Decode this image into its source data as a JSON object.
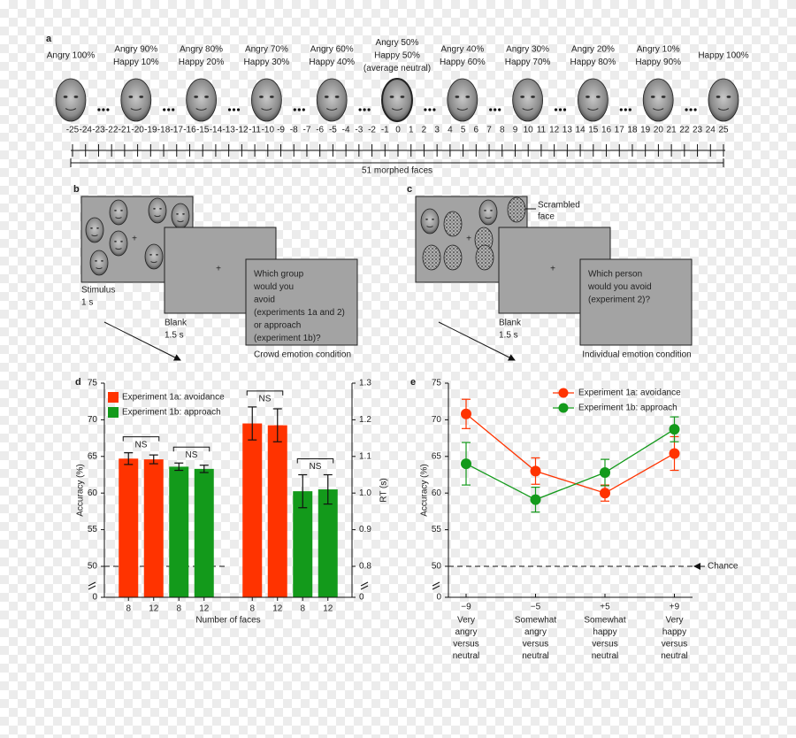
{
  "panel_a": {
    "label": "a",
    "face_labels": [
      [
        "Angry 100%"
      ],
      [
        "Angry 90%",
        "Happy 10%"
      ],
      [
        "Angry 80%",
        "Happy 20%"
      ],
      [
        "Angry 70%",
        "Happy 30%"
      ],
      [
        "Angry 60%",
        "Happy 40%"
      ],
      [
        "Angry 50%",
        "Happy 50%",
        "(average neutral)"
      ],
      [
        "Angry 40%",
        "Happy 60%"
      ],
      [
        "Angry 30%",
        "Happy 70%"
      ],
      [
        "Angry 20%",
        "Happy 80%"
      ],
      [
        "Angry 10%",
        "Happy 90%"
      ],
      [
        "Happy 100%"
      ]
    ],
    "scale_ticks": [
      -25,
      -24,
      -23,
      -22,
      -21,
      -20,
      -19,
      -18,
      -17,
      -16,
      -15,
      -14,
      -13,
      -12,
      -11,
      -10,
      -9,
      -8,
      -7,
      -6,
      -5,
      -4,
      -3,
      -2,
      -1,
      0,
      1,
      2,
      3,
      4,
      5,
      6,
      7,
      8,
      9,
      10,
      11,
      12,
      13,
      14,
      15,
      16,
      17,
      18,
      19,
      20,
      21,
      22,
      23,
      24,
      25
    ],
    "caption": "51 morphed faces"
  },
  "panel_b": {
    "label": "b",
    "fixation": "+",
    "stimulus": [
      "Stimulus",
      "1 s"
    ],
    "blank": [
      "Blank",
      "1.5 s"
    ],
    "question": [
      "Which group",
      "would you",
      "avoid",
      "(experiments 1a and 2)",
      "or approach",
      "(experiment 1b)?"
    ],
    "caption": "Crowd emotion condition"
  },
  "panel_c": {
    "label": "c",
    "fixation": "+",
    "callout": [
      "Scrambled",
      "face"
    ],
    "blank": [
      "Blank",
      "1.5 s"
    ],
    "question": [
      "Which person",
      "would you avoid",
      "(experiment 2)?"
    ],
    "caption": "Individual emotion condition"
  },
  "chart_data": [
    {
      "type": "bar",
      "panel_label": "d",
      "categories": [
        "8",
        "12",
        "8",
        "12"
      ],
      "values": [
        64.7,
        64.6,
        63.6,
        63.3
      ],
      "errors": [
        0.8,
        0.6,
        0.5,
        0.5
      ],
      "colors": [
        "#ff3300",
        "#ff3300",
        "#139a1b",
        "#139a1b"
      ],
      "legend": [
        {
          "name": "Experiment 1a: avoidance",
          "color": "#ff3300"
        },
        {
          "name": "Experiment 1b: approach",
          "color": "#139a1b"
        }
      ],
      "ylabel": "Accuracy (%)",
      "ylim": [
        50,
        75
      ],
      "yticks": [
        50,
        55,
        60,
        65,
        70,
        75
      ],
      "axis_side": "left",
      "axis_floor_label": 0,
      "reference_line": 50,
      "annotations": [
        "NS",
        "NS"
      ],
      "xlabel": "Number of faces"
    },
    {
      "type": "bar",
      "categories": [
        "8",
        "12",
        "8",
        "12"
      ],
      "values": [
        1.19,
        1.185,
        1.005,
        1.01
      ],
      "errors": [
        0.045,
        0.045,
        0.045,
        0.04
      ],
      "colors": [
        "#ff3300",
        "#ff3300",
        "#139a1b",
        "#139a1b"
      ],
      "ylabel": "RT (s)",
      "ylim": [
        0.8,
        1.3
      ],
      "yticks": [
        0.8,
        0.9,
        {
          "value": 1,
          "label": "1.0"
        },
        1.1,
        1.2,
        1.3
      ],
      "axis_side": "right",
      "axis_floor_label": 0,
      "annotations": [
        "NS",
        "NS"
      ]
    },
    {
      "type": "line",
      "panel_label": "e",
      "categories": [
        "−9",
        "−5",
        "+5",
        "+9"
      ],
      "category_notes": [
        [
          "Very",
          "angry",
          "versus",
          "neutral"
        ],
        [
          "Somewhat",
          "angry",
          "versus",
          "neutral"
        ],
        [
          "Somewhat",
          "happy",
          "versus",
          "neutral"
        ],
        [
          "Very",
          "happy",
          "versus",
          "neutral"
        ]
      ],
      "series": [
        {
          "name": "Experiment 1a: avoidance",
          "color": "#ff3300",
          "values": [
            70.8,
            63.0,
            60.0,
            65.4
          ],
          "errors": [
            2.0,
            1.8,
            1.1,
            2.3
          ]
        },
        {
          "name": "Experiment 1b: approach",
          "color": "#139a1b",
          "values": [
            64.0,
            59.1,
            62.8,
            68.7
          ],
          "errors": [
            2.9,
            1.7,
            1.8,
            1.7
          ]
        }
      ],
      "ylabel": "Accuracy (%)",
      "ylim": [
        50,
        75
      ],
      "yticks": [
        50,
        55,
        60,
        65,
        70,
        75
      ],
      "axis_floor_label": 0,
      "reference_line": 50,
      "reference_label": "Chance"
    }
  ]
}
